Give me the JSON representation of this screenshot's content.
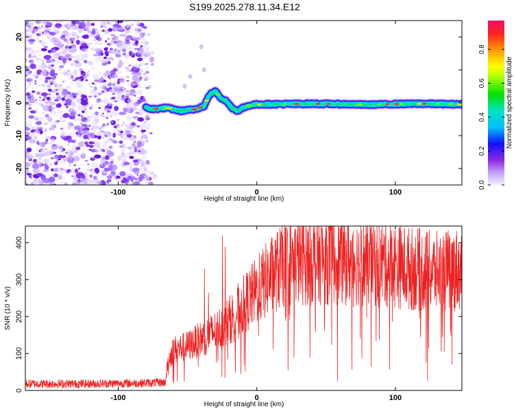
{
  "figure_title": "S199.2025.278.11.34.E12",
  "colors": {
    "snr_line": "#ee2222",
    "ridge_core": "#ff2a2a",
    "noise": "#8a2be2",
    "axis": "#000000"
  },
  "chart_data": [
    {
      "type": "heatmap",
      "title": "S199.2025.278.11.34.E12",
      "xlabel": "Height of straight line (km)",
      "ylabel": "Frequency (Hz)",
      "xlim": [
        -167,
        148
      ],
      "ylim": [
        -25,
        25
      ],
      "xticks": [
        -100,
        0,
        100
      ],
      "xtick_labels": [
        "-100",
        "0",
        "100"
      ],
      "yticks": [
        -20,
        -10,
        0,
        10,
        20
      ],
      "ytick_labels": [
        "-20",
        "-10",
        "0",
        "10",
        "20"
      ],
      "noise_region_x": [
        -167,
        -75
      ],
      "ridge": {
        "x": [
          -80,
          -75,
          -65,
          -55,
          -45,
          -38,
          -34,
          -30,
          -26,
          -22,
          -18,
          -14,
          -10,
          -5,
          0,
          20,
          40,
          60,
          80,
          100,
          120,
          148
        ],
        "y": [
          -1.5,
          -2,
          -1.5,
          -2.5,
          -2,
          -1,
          2.5,
          3.5,
          1.5,
          0.5,
          -1.5,
          -2.5,
          -1.5,
          -0.8,
          -0.5,
          -0.4,
          -0.3,
          -0.4,
          -0.6,
          -0.4,
          -0.3,
          -0.5
        ]
      },
      "colorbar": {
        "label": "Normalized spectral amplitude",
        "range": [
          0,
          0.97
        ],
        "ticks": [
          0.0,
          0.2,
          0.4,
          0.6,
          0.8
        ],
        "tick_labels": [
          "0.0",
          "0.2",
          "0.4",
          "0.6",
          "0.8"
        ]
      }
    },
    {
      "type": "line",
      "xlabel": "Height of straight line (km)",
      "ylabel": "SNR (10 * v/v)",
      "xlim": [
        -167,
        148
      ],
      "ylim": [
        0,
        445
      ],
      "xticks": [
        -100,
        0,
        100
      ],
      "xtick_labels": [
        "-100",
        "0",
        "100"
      ],
      "yticks": [
        0,
        100,
        200,
        300,
        400
      ],
      "ytick_labels": [
        "0",
        "100",
        "200",
        "300",
        "400"
      ],
      "envelope": {
        "x": [
          -167,
          -120,
          -80,
          -66,
          -64,
          -60,
          -50,
          -40,
          -30,
          -20,
          -10,
          0,
          10,
          20,
          30,
          50,
          70,
          90,
          110,
          130,
          148
        ],
        "y": [
          18,
          18,
          20,
          22,
          80,
          110,
          120,
          140,
          160,
          190,
          230,
          270,
          310,
          340,
          350,
          355,
          350,
          345,
          330,
          320,
          330
        ]
      },
      "spikes": [
        {
          "x": -38,
          "y": 330
        },
        {
          "x": -25,
          "y": 420
        },
        {
          "x": -23,
          "y": 390
        },
        {
          "x": -35,
          "y": 265
        },
        {
          "x": 60,
          "y": 440
        },
        {
          "x": 58,
          "y": 25
        },
        {
          "x": 75,
          "y": 410
        },
        {
          "x": 123,
          "y": 25
        },
        {
          "x": 122,
          "y": 75
        },
        {
          "x": 138,
          "y": 420
        }
      ]
    }
  ]
}
